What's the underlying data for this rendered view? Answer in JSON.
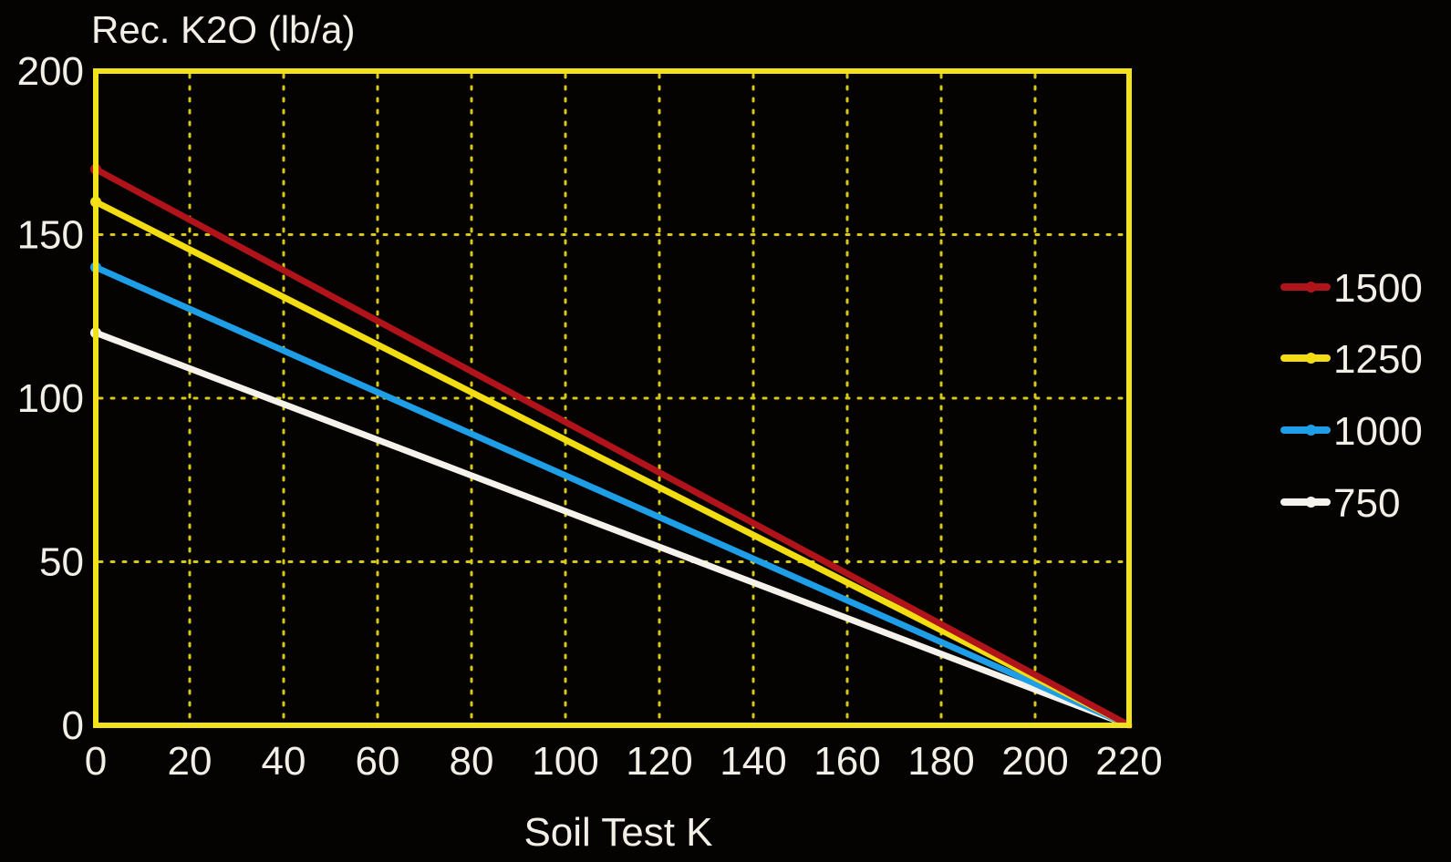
{
  "chart_data": {
    "type": "line",
    "title": "",
    "ylabel": "Rec. K2O (lb/a)",
    "xlabel": "Soil Test K",
    "xlim": [
      0,
      220
    ],
    "ylim": [
      0,
      200
    ],
    "x_ticks": [
      0,
      20,
      40,
      60,
      80,
      100,
      120,
      140,
      160,
      180,
      200,
      220
    ],
    "y_ticks": [
      0,
      50,
      100,
      150,
      200
    ],
    "grid": true,
    "grid_style": "dotted",
    "legend_position": "right",
    "colors": {
      "background": "#050302",
      "frame": "#f2e21a",
      "grid": "#d8c81a",
      "text": "#f2efe6"
    },
    "series": [
      {
        "name": "1500",
        "color": "#b0141a",
        "x": [
          0,
          220
        ],
        "y": [
          170,
          0
        ]
      },
      {
        "name": "1250",
        "color": "#f2dc12",
        "x": [
          0,
          220
        ],
        "y": [
          160,
          0
        ]
      },
      {
        "name": "1000",
        "color": "#1e9ee6",
        "x": [
          0,
          220
        ],
        "y": [
          140,
          0
        ]
      },
      {
        "name": "750",
        "color": "#f4f2ea",
        "x": [
          0,
          220
        ],
        "y": [
          120,
          0
        ]
      }
    ]
  }
}
